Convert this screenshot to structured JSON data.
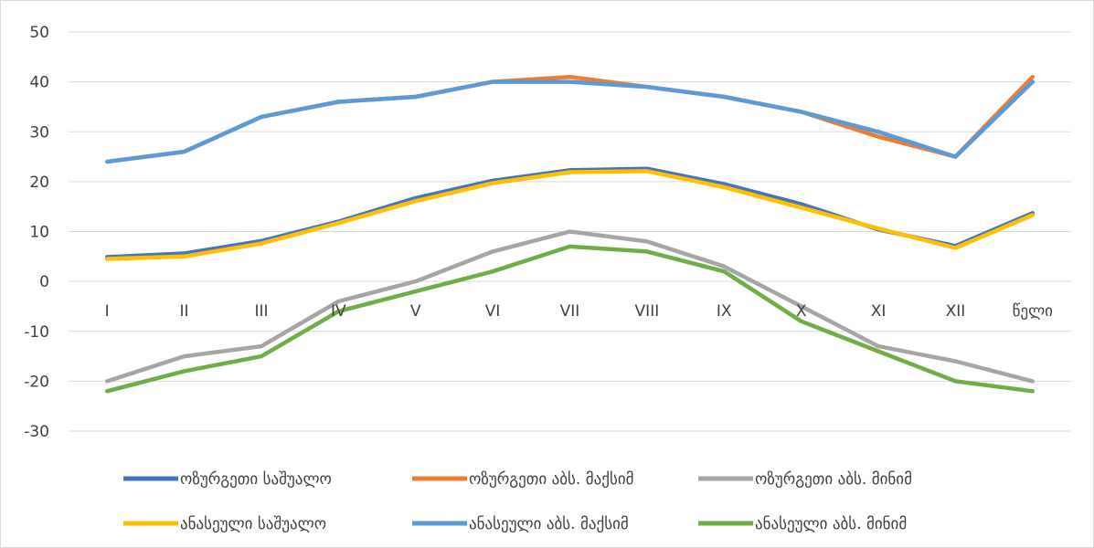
{
  "chart_data": {
    "type": "line",
    "categories": [
      "I",
      "II",
      "III",
      "IV",
      "V",
      "VI",
      "VII",
      "VIII",
      "IX",
      "X",
      "XI",
      "XII",
      "წელი"
    ],
    "ylim": [
      -30,
      50
    ],
    "yticks": [
      50,
      40,
      30,
      20,
      10,
      0,
      -10,
      -20,
      -30
    ],
    "grid": true,
    "legend_position": "bottom",
    "title": "",
    "xlabel": "",
    "ylabel": "",
    "series": [
      {
        "name": "ოზურგეთი საშუალო",
        "color": "#4472c4",
        "values": [
          4.9,
          5.6,
          8.1,
          12.0,
          16.7,
          20.2,
          22.3,
          22.6,
          19.5,
          15.5,
          10.4,
          7.1,
          13.7
        ]
      },
      {
        "name": "ოზურგეთი აბს. მაქსიმ",
        "color": "#ed7d31",
        "values": [
          24,
          26,
          33,
          36,
          37,
          40,
          41,
          39,
          37,
          34,
          29,
          25,
          41
        ]
      },
      {
        "name": "ოზურგეთი აბს. მინიმ",
        "color": "#a5a5a5",
        "values": [
          -20,
          -15,
          -13,
          -4,
          0,
          6,
          10,
          8,
          3,
          -5,
          -13,
          -16,
          -20
        ]
      },
      {
        "name": "ანასეული  საშუალო",
        "color": "#ffc000",
        "values": [
          4.5,
          5.0,
          7.6,
          11.7,
          16.1,
          19.7,
          21.9,
          22.1,
          18.9,
          14.8,
          10.6,
          6.7,
          13.3
        ]
      },
      {
        "name": "ანასეული აბს. მაქსიმ",
        "color": "#5b9bd5",
        "values": [
          24,
          26,
          33,
          36,
          37,
          40,
          40,
          39,
          37,
          34,
          30,
          25,
          40
        ]
      },
      {
        "name": "ანასეული აბს. მინიმ",
        "color": "#70ad47",
        "values": [
          -22,
          -18,
          -15,
          -6,
          -2,
          2,
          7,
          6,
          2,
          -8,
          -14,
          -20,
          -22
        ]
      }
    ]
  }
}
